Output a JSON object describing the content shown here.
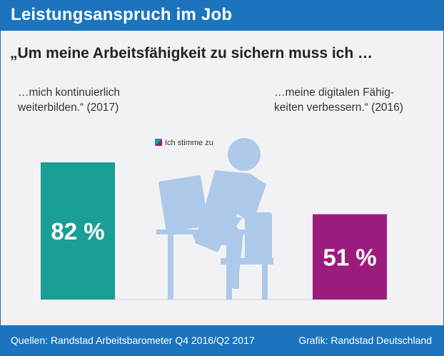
{
  "header": {
    "title": "Leistungsanspruch im Job"
  },
  "headline": "„Um meine Arbeitsfähigkeit zu sichern muss ich …",
  "quotes": {
    "left": {
      "line1": "…mich kontinuierlich",
      "line2": "weiterbilden.“ (2017)"
    },
    "right": {
      "line1": "…meine digitalen Fähig-",
      "line2": "keiten verbessern.“ (2016)"
    }
  },
  "legend": {
    "label": "Ich stimme zu",
    "color_a": "#1a9e96",
    "color_b": "#9c1c7e"
  },
  "chart_data": {
    "type": "bar",
    "categories": [
      "…mich kontinuierlich weiterbilden.“ (2017)",
      "…meine digitalen Fähigkeiten verbessern.“ (2016)"
    ],
    "values": [
      82,
      51
    ],
    "value_labels": [
      "82 %",
      "51 %"
    ],
    "colors": [
      "#1a9e96",
      "#9c1c7e"
    ],
    "ylim": [
      0,
      100
    ],
    "grid": false
  },
  "colors": {
    "header": "#1b74bd",
    "background": "#f2f2f4",
    "illustration": "#adc9e9"
  },
  "illustration": {
    "icon": "person-at-computer-icon"
  },
  "footer": {
    "source": "Quellen: Randstad Arbeitsbarometer Q4 2016/Q2 2017",
    "credit": "Grafik: Randstad Deutschland"
  }
}
